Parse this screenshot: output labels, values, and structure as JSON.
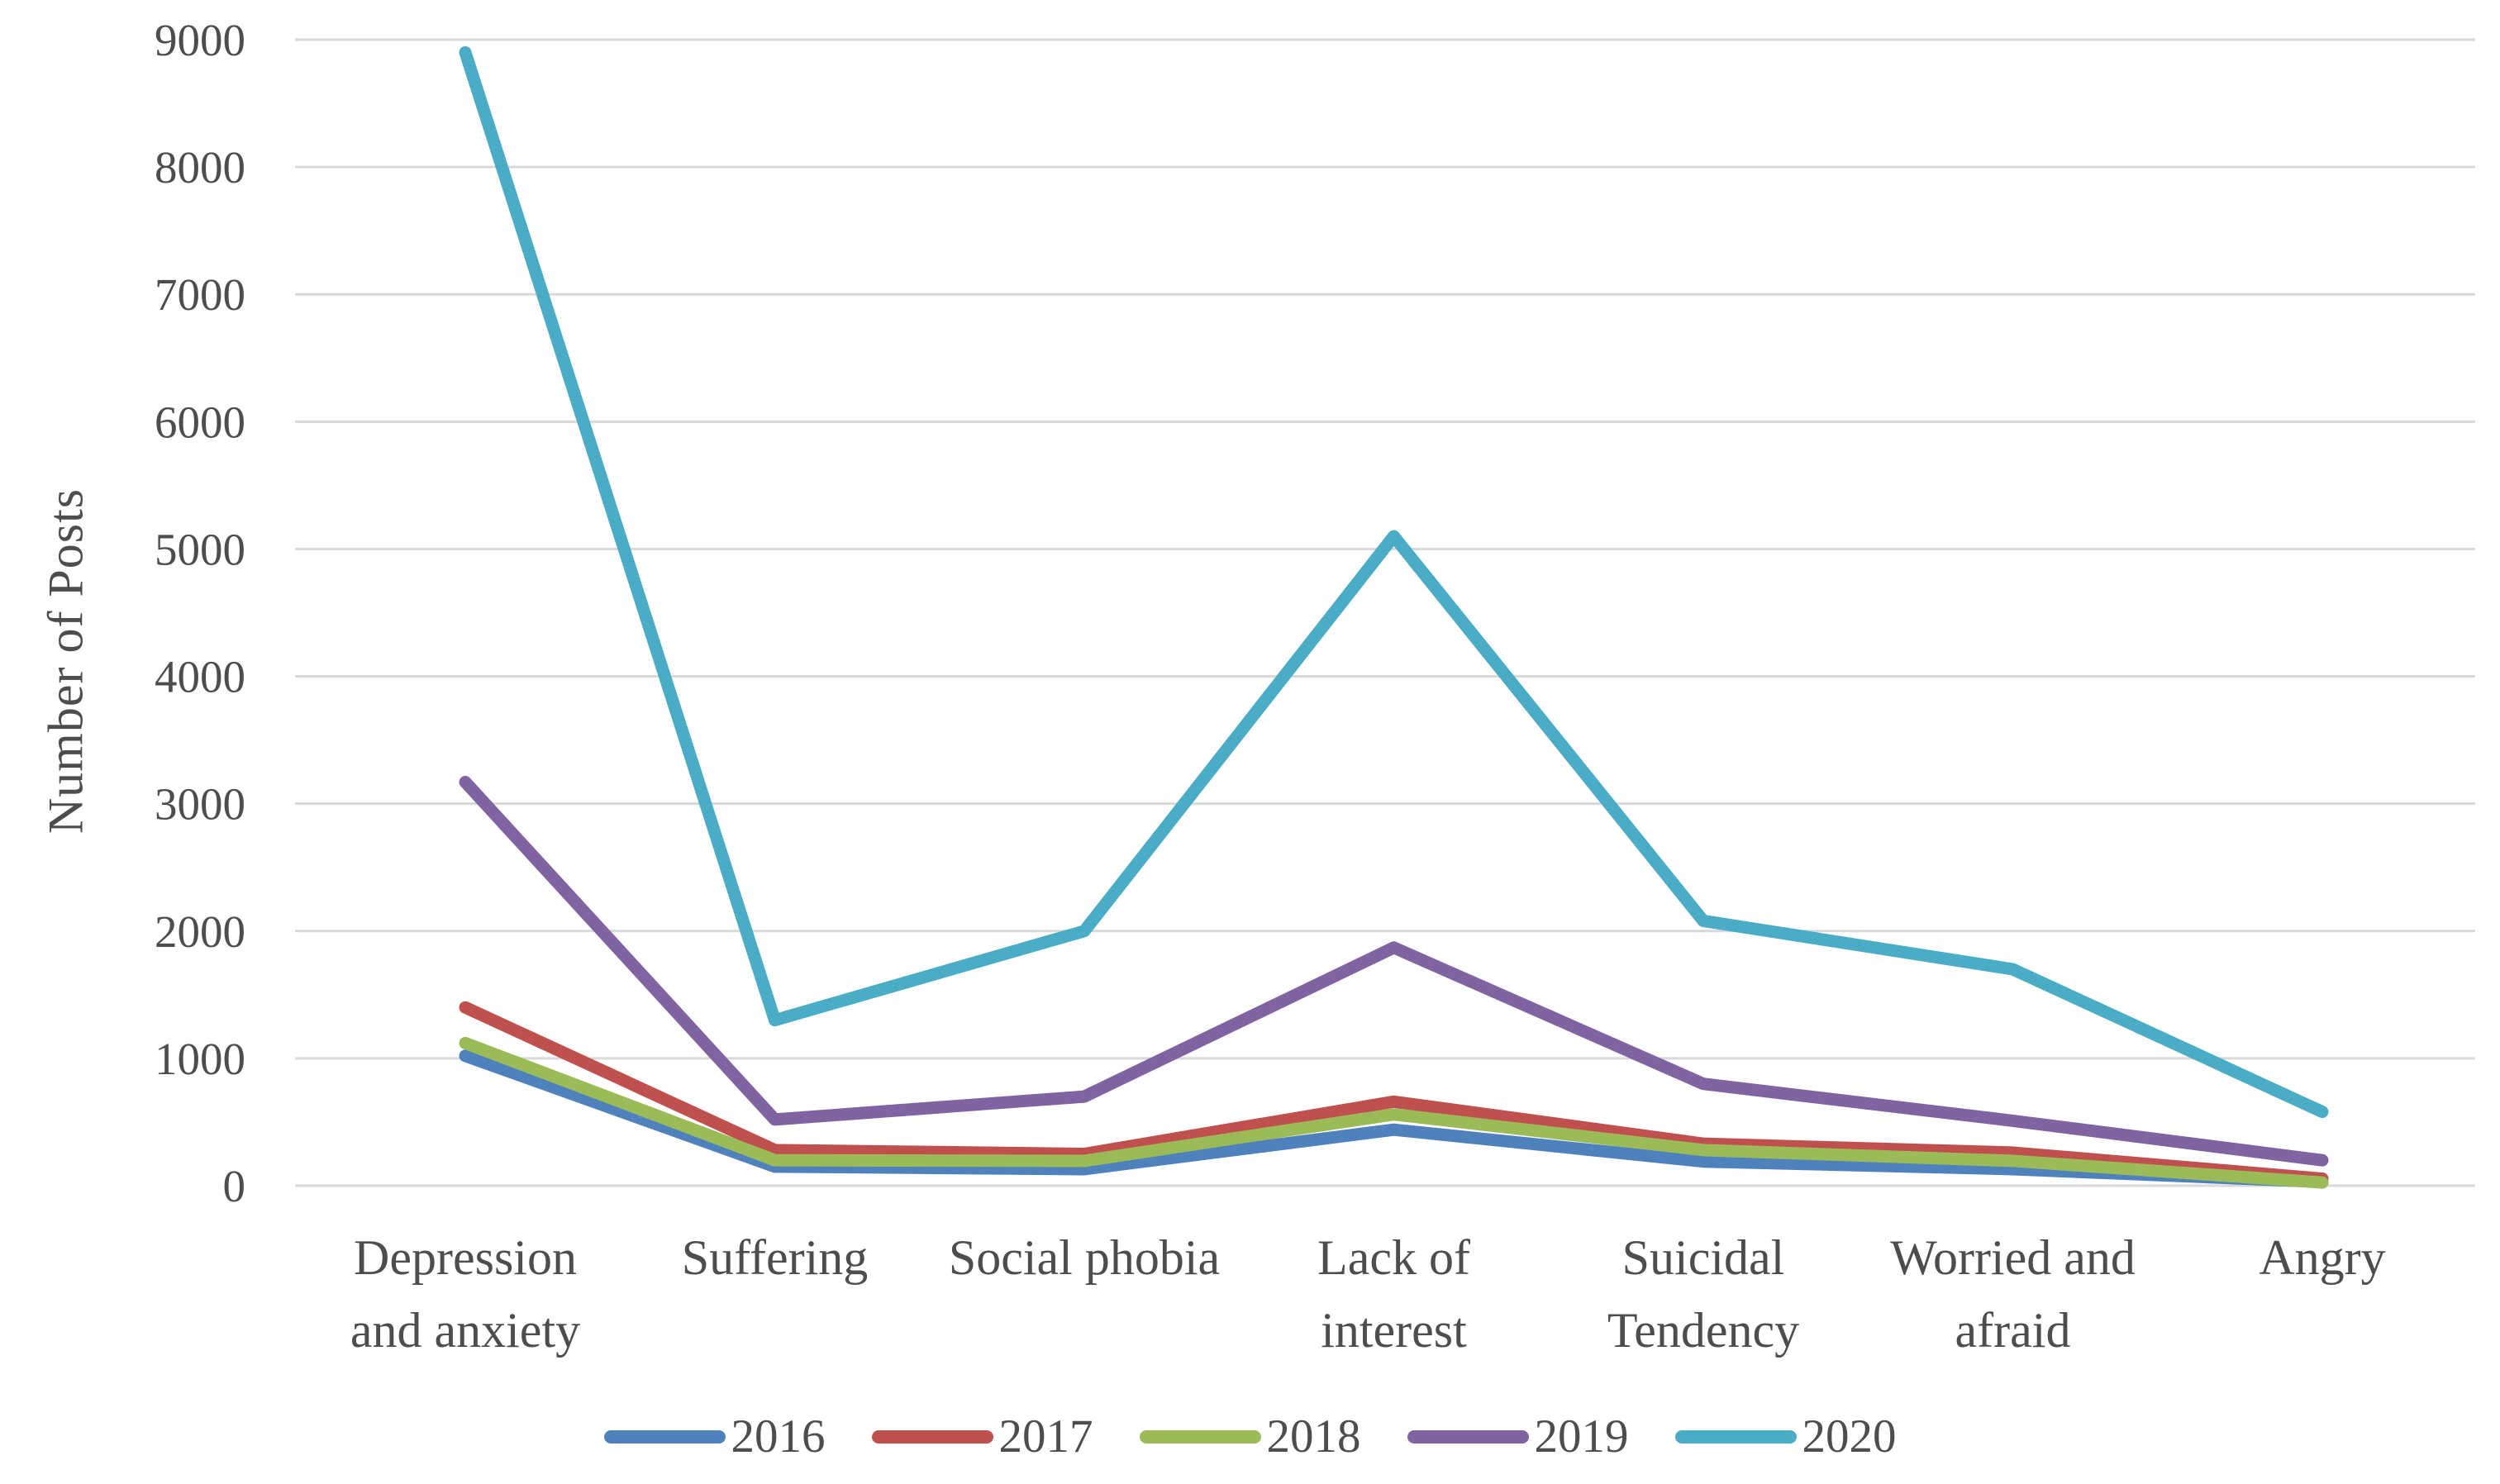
{
  "figure": {
    "background": "#FFFFFF",
    "text_color": "#4D4D4D",
    "gridline_color": "#D9D9D9"
  },
  "chart_data": {
    "type": "line",
    "title": "",
    "xlabel": "",
    "ylabel": "Number of Posts",
    "ylim": [
      0,
      9000
    ],
    "ytick_step": 1000,
    "ytick_labels": [
      "0",
      "1000",
      "2000",
      "3000",
      "4000",
      "5000",
      "6000",
      "7000",
      "8000",
      "9000"
    ],
    "grid": "horizontal",
    "legend_position": "bottom",
    "categories": [
      "Depression and anxiety",
      "Suffering",
      "Social phobia",
      "Lack of interest",
      "Suicidal Tendency",
      "Worried and afraid",
      "Angry"
    ],
    "category_label_lines": [
      [
        "Depression",
        "and anxiety"
      ],
      [
        "Suffering"
      ],
      [
        "Social phobia"
      ],
      [
        "Lack of",
        "interest"
      ],
      [
        "Suicidal",
        "Tendency"
      ],
      [
        "Worried and",
        "afraid"
      ],
      [
        "Angry"
      ]
    ],
    "series": [
      {
        "name": "2016",
        "color": "#4F81BD",
        "values": [
          1020,
          150,
          130,
          440,
          190,
          130,
          30
        ]
      },
      {
        "name": "2017",
        "color": "#C0504D",
        "values": [
          1400,
          280,
          250,
          660,
          330,
          260,
          55
        ]
      },
      {
        "name": "2018",
        "color": "#9BBB59",
        "values": [
          1120,
          200,
          195,
          560,
          280,
          195,
          25
        ]
      },
      {
        "name": "2019",
        "color": "#8064A2",
        "values": [
          3170,
          520,
          700,
          1870,
          800,
          510,
          200
        ]
      },
      {
        "name": "2020",
        "color": "#4BACC6",
        "values": [
          8900,
          1300,
          2000,
          5100,
          2080,
          1700,
          580
        ]
      }
    ]
  }
}
